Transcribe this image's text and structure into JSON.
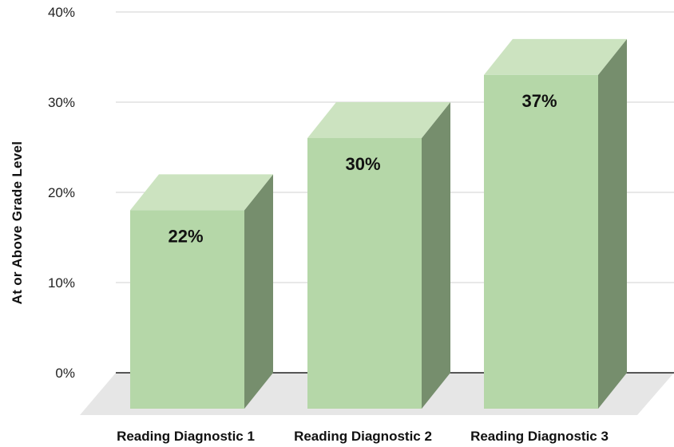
{
  "chart_data": {
    "type": "bar",
    "categories": [
      "Reading Diagnostic 1",
      "Reading Diagnostic 2",
      "Reading Diagnostic 3"
    ],
    "values": [
      22,
      30,
      37
    ],
    "data_labels": [
      "22%",
      "30%",
      "37%"
    ],
    "ylabel": "At or Above Grade Level",
    "ylim": [
      0,
      40
    ],
    "yticks": [
      0,
      10,
      20,
      30,
      40
    ],
    "ytick_labels": [
      "0%",
      "10%",
      "20%",
      "30%",
      "40%"
    ],
    "grid": true,
    "style": "3d-column",
    "colors": {
      "front": "#b5d7a8",
      "top": "#cce3c0",
      "side": "#768e6d",
      "floor": "#e6e6e6",
      "grid": "#d9d9d9",
      "baseline": "#222222"
    }
  }
}
